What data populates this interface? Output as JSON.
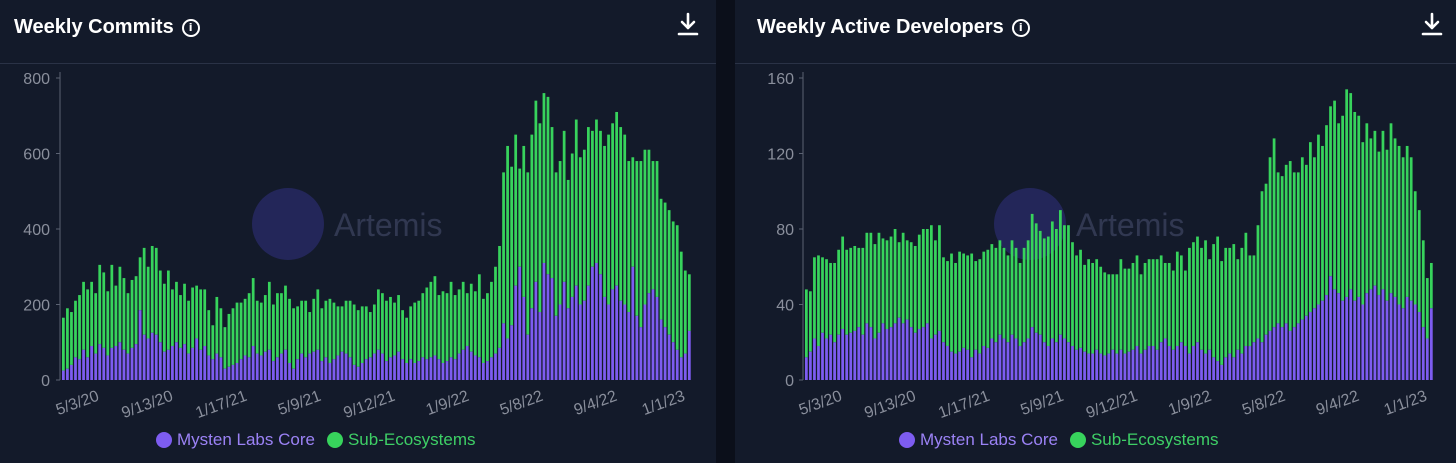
{
  "colors": {
    "core": "#7d5cf0",
    "sub": "#37d35c",
    "background": "#131a2a"
  },
  "legend": {
    "core_label": "Mysten Labs Core",
    "sub_label": "Sub-Ecosystems"
  },
  "chart_data": [
    {
      "type": "bar",
      "stacked": true,
      "title": "Weekly Commits",
      "ylim": [
        0,
        800
      ],
      "yticks": [
        0,
        200,
        400,
        600,
        800
      ],
      "xticks": [
        "5/3/20",
        "9/13/20",
        "1/17/21",
        "5/9/21",
        "9/12/21",
        "1/9/22",
        "5/8/22",
        "9/4/22",
        "1/1/23"
      ],
      "grid": false,
      "legend_position": "bottom",
      "series": [
        {
          "name": "Mysten Labs Core",
          "color": "core",
          "values": [
            25,
            30,
            40,
            60,
            55,
            80,
            60,
            90,
            70,
            95,
            85,
            65,
            85,
            90,
            100,
            80,
            70,
            85,
            95,
            185,
            120,
            110,
            125,
            120,
            100,
            75,
            80,
            90,
            100,
            85,
            95,
            70,
            85,
            110,
            80,
            90,
            65,
            55,
            70,
            60,
            30,
            35,
            40,
            45,
            55,
            65,
            60,
            90,
            70,
            65,
            75,
            80,
            50,
            60,
            70,
            80,
            45,
            30,
            55,
            70,
            60,
            70,
            75,
            80,
            50,
            60,
            45,
            55,
            65,
            75,
            70,
            60,
            40,
            35,
            45,
            55,
            60,
            70,
            80,
            70,
            50,
            60,
            65,
            75,
            55,
            45,
            55,
            45,
            50,
            60,
            55,
            60,
            65,
            55,
            45,
            50,
            60,
            55,
            70,
            80,
            90,
            75,
            65,
            60,
            45,
            50,
            60,
            70,
            85,
            150,
            110,
            145,
            250,
            300,
            220,
            120,
            190,
            260,
            180,
            310,
            280,
            270,
            170,
            200,
            260,
            190,
            220,
            250,
            200,
            210,
            250,
            300,
            310,
            280,
            220,
            200,
            240,
            250,
            210,
            200,
            180,
            300,
            170,
            140,
            200,
            230,
            240,
            220,
            160,
            140,
            120,
            100,
            80,
            60,
            70,
            130
          ]
        },
        {
          "name": "Sub-Ecosystems",
          "color": "sub",
          "values": [
            140,
            160,
            140,
            150,
            170,
            180,
            180,
            170,
            160,
            210,
            200,
            170,
            220,
            160,
            200,
            190,
            160,
            180,
            180,
            140,
            230,
            190,
            230,
            230,
            190,
            180,
            210,
            150,
            160,
            140,
            160,
            140,
            160,
            140,
            160,
            150,
            120,
            90,
            150,
            130,
            110,
            140,
            150,
            160,
            150,
            150,
            170,
            180,
            140,
            140,
            150,
            180,
            150,
            170,
            160,
            170,
            170,
            160,
            140,
            140,
            150,
            110,
            140,
            160,
            140,
            150,
            170,
            150,
            130,
            120,
            140,
            150,
            160,
            150,
            150,
            140,
            120,
            130,
            160,
            160,
            160,
            160,
            140,
            150,
            130,
            120,
            140,
            160,
            160,
            170,
            190,
            200,
            210,
            170,
            190,
            180,
            200,
            170,
            170,
            180,
            140,
            180,
            170,
            220,
            170,
            180,
            200,
            230,
            270,
            400,
            510,
            420,
            400,
            260,
            400,
            430,
            460,
            480,
            500,
            450,
            470,
            400,
            380,
            380,
            400,
            340,
            380,
            440,
            390,
            400,
            420,
            360,
            380,
            380,
            400,
            450,
            440,
            460,
            460,
            450,
            400,
            290,
            410,
            440,
            410,
            380,
            340,
            360,
            320,
            330,
            330,
            320,
            330,
            280,
            220,
            150,
            80
          ]
        }
      ]
    },
    {
      "type": "bar",
      "stacked": true,
      "title": "Weekly Active Developers",
      "ylim": [
        0,
        160
      ],
      "yticks": [
        0,
        40,
        80,
        120,
        160
      ],
      "xticks": [
        "5/3/20",
        "9/13/20",
        "1/17/21",
        "5/9/21",
        "9/12/21",
        "1/9/22",
        "5/8/22",
        "9/4/22",
        "1/1/23"
      ],
      "grid": false,
      "legend_position": "bottom",
      "series": [
        {
          "name": "Mysten Labs Core",
          "color": "core",
          "values": [
            12,
            15,
            22,
            18,
            25,
            22,
            24,
            20,
            24,
            27,
            24,
            25,
            26,
            28,
            24,
            30,
            28,
            22,
            25,
            30,
            27,
            28,
            30,
            33,
            30,
            32,
            28,
            25,
            27,
            28,
            30,
            22,
            24,
            26,
            20,
            18,
            15,
            14,
            15,
            17,
            16,
            12,
            16,
            14,
            18,
            17,
            22,
            20,
            24,
            22,
            20,
            24,
            22,
            18,
            20,
            22,
            28,
            25,
            24,
            20,
            18,
            22,
            20,
            24,
            22,
            20,
            18,
            16,
            17,
            15,
            14,
            14,
            16,
            14,
            13,
            14,
            16,
            14,
            16,
            14,
            15,
            16,
            18,
            14,
            16,
            18,
            18,
            16,
            20,
            22,
            18,
            16,
            18,
            20,
            18,
            14,
            18,
            20,
            16,
            14,
            16,
            12,
            10,
            8,
            12,
            14,
            12,
            16,
            14,
            18,
            18,
            20,
            22,
            20,
            24,
            26,
            28,
            30,
            28,
            30,
            26,
            28,
            30,
            32,
            34,
            36,
            38,
            40,
            42,
            45,
            55,
            48,
            46,
            42,
            44,
            48,
            42,
            44,
            40,
            46,
            48,
            50,
            45,
            48,
            42,
            46,
            44,
            40,
            38,
            44,
            42,
            40,
            36,
            28,
            22,
            38
          ]
        },
        {
          "name": "Sub-Ecosystems",
          "color": "sub",
          "values": [
            36,
            32,
            43,
            48,
            40,
            42,
            38,
            42,
            45,
            49,
            45,
            45,
            45,
            42,
            46,
            48,
            50,
            50,
            53,
            45,
            47,
            48,
            50,
            40,
            48,
            42,
            45,
            46,
            50,
            52,
            50,
            60,
            50,
            56,
            45,
            45,
            52,
            48,
            53,
            50,
            50,
            55,
            47,
            50,
            50,
            52,
            50,
            50,
            50,
            48,
            46,
            50,
            48,
            44,
            50,
            52,
            60,
            58,
            55,
            55,
            58,
            62,
            60,
            66,
            60,
            62,
            55,
            50,
            52,
            46,
            50,
            48,
            48,
            46,
            44,
            42,
            40,
            42,
            48,
            45,
            44,
            46,
            48,
            42,
            46,
            46,
            46,
            48,
            46,
            40,
            44,
            42,
            50,
            46,
            40,
            56,
            55,
            56,
            54,
            60,
            48,
            60,
            66,
            55,
            58,
            56,
            60,
            48,
            56,
            60,
            48,
            46,
            60,
            80,
            80,
            92,
            100,
            80,
            80,
            84,
            90,
            82,
            80,
            86,
            80,
            90,
            80,
            90,
            82,
            90,
            90,
            100,
            90,
            98,
            110,
            104,
            100,
            96,
            86,
            90,
            80,
            82,
            76,
            84,
            80,
            90,
            84,
            84,
            80,
            80,
            76,
            60,
            54,
            46,
            32,
            24
          ]
        }
      ]
    }
  ],
  "charts_ui": [
    {
      "title": "Weekly Commits",
      "watermark": "Artemis"
    },
    {
      "title": "Weekly Active Developers",
      "watermark": "Artemis"
    }
  ]
}
